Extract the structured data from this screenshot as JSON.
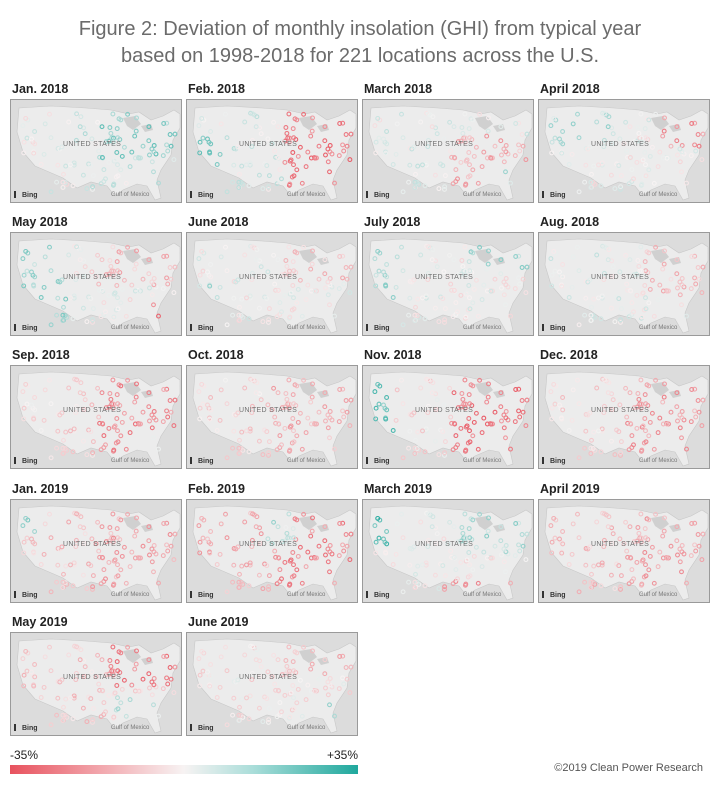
{
  "title_line1": "Figure 2: Deviation of monthly insolation (GHI) from typical year",
  "title_line2": "based on 1998-2018 for 221 locations across the U.S.",
  "map_country_label": "UNITED STATES",
  "map_gulf_label": "Gulf of Mexico",
  "map_attribution": "Bing",
  "colors": {
    "negative": "#e8525e",
    "neutral": "#f7f3f3",
    "positive": "#1fa89d",
    "land": "#ececec",
    "border": "#9a9a9a"
  },
  "panels": [
    {
      "label": "Jan. 2018",
      "pattern": "jan18"
    },
    {
      "label": "Feb. 2018",
      "pattern": "feb18"
    },
    {
      "label": "March 2018",
      "pattern": "mar18"
    },
    {
      "label": "April 2018",
      "pattern": "apr18"
    },
    {
      "label": "May 2018",
      "pattern": "may18"
    },
    {
      "label": "June 2018",
      "pattern": "jun18"
    },
    {
      "label": "July 2018",
      "pattern": "jul18"
    },
    {
      "label": "Aug. 2018",
      "pattern": "aug18"
    },
    {
      "label": "Sep. 2018",
      "pattern": "sep18"
    },
    {
      "label": "Oct. 2018",
      "pattern": "oct18"
    },
    {
      "label": "Nov. 2018",
      "pattern": "nov18"
    },
    {
      "label": "Dec. 2018",
      "pattern": "dec18"
    },
    {
      "label": "Jan. 2019",
      "pattern": "jan19"
    },
    {
      "label": "Feb. 2019",
      "pattern": "feb19"
    },
    {
      "label": "March 2019",
      "pattern": "mar19"
    },
    {
      "label": "April 2019",
      "pattern": "apr19"
    },
    {
      "label": "May 2019",
      "pattern": "may19"
    },
    {
      "label": "June 2019",
      "pattern": "jun19"
    }
  ],
  "legend": {
    "min_label": "-35%",
    "max_label": "+35%",
    "min_value": -35,
    "max_value": 35
  },
  "copyright": "©2019 Clean Power Research"
}
